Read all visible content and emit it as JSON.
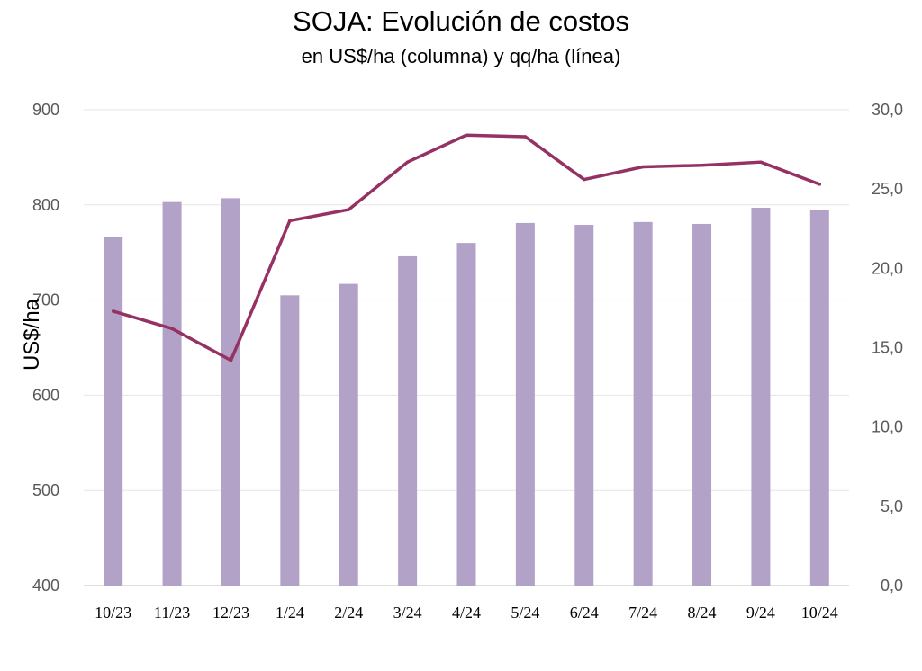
{
  "chart_data": {
    "type": "bar",
    "title": "SOJA: Evolución de costos",
    "subtitle": "en US$/ha (columna) y qq/ha (línea)",
    "ylabel": "US$/ha",
    "categories": [
      "10/23",
      "11/23",
      "12/23",
      "1/24",
      "2/24",
      "3/24",
      "4/24",
      "5/24",
      "6/24",
      "7/24",
      "8/24",
      "9/24",
      "10/24"
    ],
    "ylim": [
      400,
      900
    ],
    "y_ticks": [
      "400",
      "500",
      "600",
      "700",
      "800",
      "900"
    ],
    "y2lim": [
      0,
      30
    ],
    "y2_ticks": [
      "0,0",
      "5,0",
      "10,0",
      "15,0",
      "20,0",
      "25,0",
      "30,0"
    ],
    "grid": "horizontal",
    "legend": "none",
    "series": [
      {
        "type": "bar",
        "axis": "left",
        "color": "#b3a2c7",
        "values": [
          766,
          803,
          807,
          705,
          717,
          746,
          760,
          781,
          779,
          782,
          780,
          797,
          795
        ]
      },
      {
        "type": "line",
        "axis": "right",
        "color": "#953163",
        "values": [
          17.3,
          16.2,
          14.2,
          23.0,
          23.7,
          26.7,
          28.4,
          28.3,
          25.6,
          26.4,
          26.5,
          26.7,
          25.3
        ]
      }
    ]
  }
}
